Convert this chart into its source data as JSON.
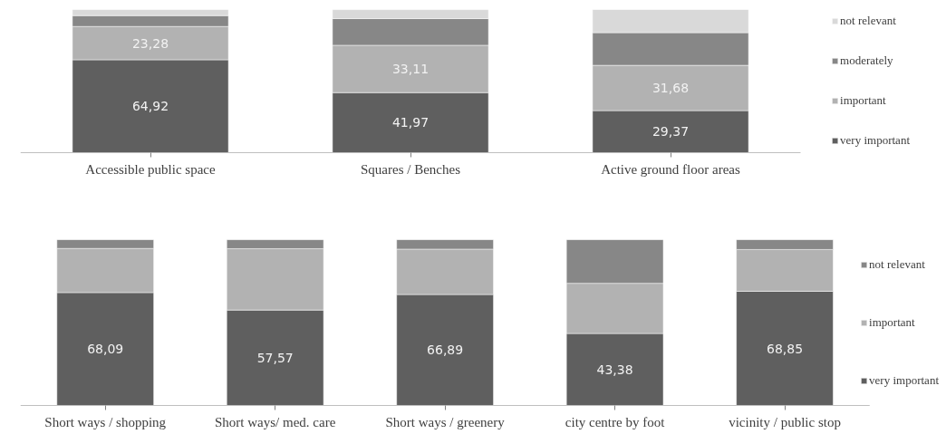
{
  "chart_data": [
    {
      "type": "bar",
      "stacked": true,
      "legend": "right",
      "tick_labels": "x",
      "categories": [
        "Accessible public space",
        "Squares / Benches",
        "Active ground floor areas"
      ],
      "series": [
        {
          "name": "very important",
          "color": "#5f5f5f",
          "values": [
            64.92,
            41.97,
            29.37
          ],
          "value_labels": [
            "64,92",
            "41,97",
            "29,37"
          ]
        },
        {
          "name": "important",
          "color": "#b2b2b2",
          "values": [
            23.28,
            33.11,
            31.68
          ],
          "value_labels": [
            "23,28",
            "33,11",
            "31,68"
          ]
        },
        {
          "name": "moderately",
          "color": "#878787",
          "values": [
            7.6,
            18.6,
            22.8
          ],
          "value_labels": [
            null,
            null,
            null
          ]
        },
        {
          "name": "not relevant",
          "color": "#d9d9d9",
          "values": [
            4.2,
            6.3,
            16.2
          ],
          "value_labels": [
            null,
            null,
            null
          ]
        }
      ]
    },
    {
      "type": "bar",
      "stacked": true,
      "legend": "right",
      "tick_labels": "x",
      "categories": [
        "Short ways / shopping",
        "Short ways/ med. care",
        "Short ways / greenery",
        "city centre by foot",
        "vicinity / public stop"
      ],
      "series": [
        {
          "name": "very important",
          "color": "#5f5f5f",
          "values": [
            68.09,
            57.57,
            66.89,
            43.38,
            68.85
          ],
          "value_labels": [
            "68,09",
            "57,57",
            "66,89",
            "43,38",
            "68,85"
          ]
        },
        {
          "name": "important",
          "color": "#b2b2b2",
          "values": [
            26.6,
            37.0,
            27.4,
            30.3,
            25.2
          ],
          "value_labels": [
            null,
            null,
            null,
            null,
            null
          ]
        },
        {
          "name": "not relevant",
          "color": "#878787",
          "values": [
            5.3,
            5.4,
            5.7,
            26.3,
            5.95
          ],
          "value_labels": [
            null,
            null,
            null,
            null,
            null
          ]
        }
      ]
    }
  ]
}
